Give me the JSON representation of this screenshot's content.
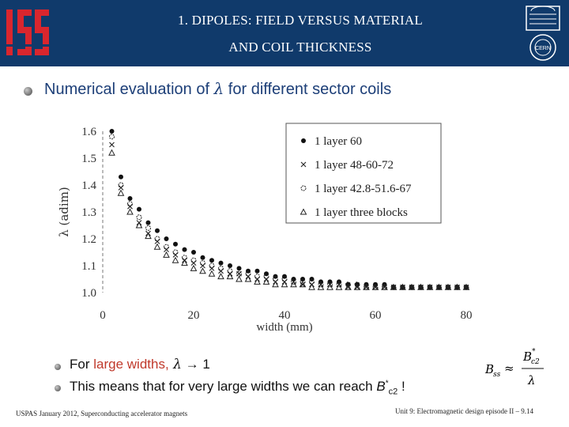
{
  "header": {
    "title_line1": "1. DIPOLES: FIELD VERSUS MATERIAL",
    "title_line2": "AND COIL THICKNESS",
    "left_logo_text": "ISSI",
    "right_logo_text": "CERN"
  },
  "main_bullet": {
    "prefix": "Numerical evaluation of ",
    "symbol": "λ",
    "suffix": " for different sector coils"
  },
  "sub_bullets": [
    {
      "prefix": "For ",
      "highlight": "large widths,",
      "symbol": " λ",
      "arrow": " → ",
      "value": "1"
    },
    {
      "prefix": "This means that for very large widths we can reach ",
      "var": "B",
      "sup": "*",
      "sub": "c2",
      "suffix": " !"
    }
  ],
  "formula": {
    "lhs": "B",
    "lhs_sub": "ss",
    "relation": "≈",
    "num": "B",
    "num_sub": "c2",
    "num_sup": "*",
    "den": "λ"
  },
  "footer": {
    "left": "USPAS January 2012,  Superconducting accelerator magnets",
    "right": "Unit 9: Electromagnetic design episode II – 9.14"
  },
  "chart_data": {
    "type": "scatter",
    "xlabel": "width (mm)",
    "ylabel": "λ (adim)",
    "xlim": [
      0,
      80
    ],
    "ylim": [
      1.0,
      1.6
    ],
    "xticks": [
      "0",
      "20",
      "40",
      "60",
      "80"
    ],
    "yticks": [
      "1.0",
      "1.1",
      "1.2",
      "1.3",
      "1.4",
      "1.5",
      "1.6"
    ],
    "legend_position": "top-right",
    "series": [
      {
        "name": "1 layer 60",
        "marker": "dot",
        "x": [
          2,
          4,
          6,
          8,
          10,
          12,
          14,
          16,
          18,
          20,
          22,
          24,
          26,
          28,
          30,
          32,
          34,
          36,
          38,
          40,
          42,
          44,
          46,
          48,
          50,
          52,
          54,
          56,
          58,
          60,
          62,
          64,
          66,
          68,
          70,
          72,
          74,
          76,
          78,
          80
        ],
        "y": [
          1.6,
          1.43,
          1.35,
          1.31,
          1.26,
          1.23,
          1.2,
          1.18,
          1.16,
          1.15,
          1.13,
          1.12,
          1.11,
          1.1,
          1.09,
          1.08,
          1.08,
          1.07,
          1.06,
          1.06,
          1.05,
          1.05,
          1.05,
          1.04,
          1.04,
          1.04,
          1.03,
          1.03,
          1.03,
          1.03,
          1.03,
          1.02,
          1.02,
          1.02,
          1.02,
          1.02,
          1.02,
          1.02,
          1.02,
          1.02
        ]
      },
      {
        "name": "1 layer 48-60-72",
        "marker": "cross",
        "x": [
          2,
          4,
          6,
          8,
          10,
          12,
          14,
          16,
          18,
          20,
          22,
          24,
          26,
          28,
          30,
          32,
          34,
          36,
          38,
          40,
          42,
          44,
          46,
          48,
          50,
          52,
          54,
          56,
          58,
          60,
          62,
          64,
          66,
          68,
          70,
          72,
          74,
          76,
          78,
          80
        ],
        "y": [
          1.55,
          1.39,
          1.32,
          1.26,
          1.22,
          1.19,
          1.16,
          1.14,
          1.12,
          1.11,
          1.1,
          1.09,
          1.08,
          1.07,
          1.07,
          1.06,
          1.05,
          1.05,
          1.04,
          1.04,
          1.04,
          1.03,
          1.03,
          1.03,
          1.03,
          1.03,
          1.02,
          1.02,
          1.02,
          1.02,
          1.02,
          1.02,
          1.02,
          1.02,
          1.02,
          1.02,
          1.02,
          1.02,
          1.02,
          1.02
        ]
      },
      {
        "name": "1 layer 42.8-51.6-67",
        "marker": "circle",
        "x": [
          2,
          4,
          6,
          8,
          10,
          12,
          14,
          16,
          18,
          20,
          22,
          24,
          26,
          28,
          30,
          32,
          34,
          36,
          38,
          40,
          42,
          44,
          46,
          48,
          50,
          52,
          54,
          56,
          58,
          60,
          62,
          64,
          66,
          68,
          70,
          72,
          74,
          76,
          78,
          80
        ],
        "y": [
          1.58,
          1.4,
          1.33,
          1.28,
          1.24,
          1.2,
          1.17,
          1.15,
          1.13,
          1.12,
          1.11,
          1.1,
          1.09,
          1.08,
          1.07,
          1.07,
          1.06,
          1.06,
          1.05,
          1.05,
          1.04,
          1.04,
          1.04,
          1.03,
          1.03,
          1.03,
          1.03,
          1.03,
          1.02,
          1.02,
          1.02,
          1.02,
          1.02,
          1.02,
          1.02,
          1.02,
          1.02,
          1.02,
          1.02,
          1.02
        ]
      },
      {
        "name": "1 layer three blocks",
        "marker": "triangle",
        "x": [
          2,
          4,
          6,
          8,
          10,
          12,
          14,
          16,
          18,
          20,
          22,
          24,
          26,
          28,
          30,
          32,
          34,
          36,
          38,
          40,
          42,
          44,
          46,
          48,
          50,
          52,
          54,
          56,
          58,
          60,
          62,
          64,
          66,
          68,
          70,
          72,
          74,
          76,
          78,
          80
        ],
        "y": [
          1.52,
          1.37,
          1.3,
          1.25,
          1.21,
          1.17,
          1.14,
          1.12,
          1.11,
          1.09,
          1.08,
          1.07,
          1.06,
          1.06,
          1.05,
          1.05,
          1.04,
          1.04,
          1.03,
          1.03,
          1.03,
          1.03,
          1.02,
          1.02,
          1.02,
          1.02,
          1.02,
          1.02,
          1.02,
          1.02,
          1.02,
          1.02,
          1.02,
          1.02,
          1.02,
          1.02,
          1.02,
          1.02,
          1.02,
          1.02
        ]
      }
    ]
  }
}
